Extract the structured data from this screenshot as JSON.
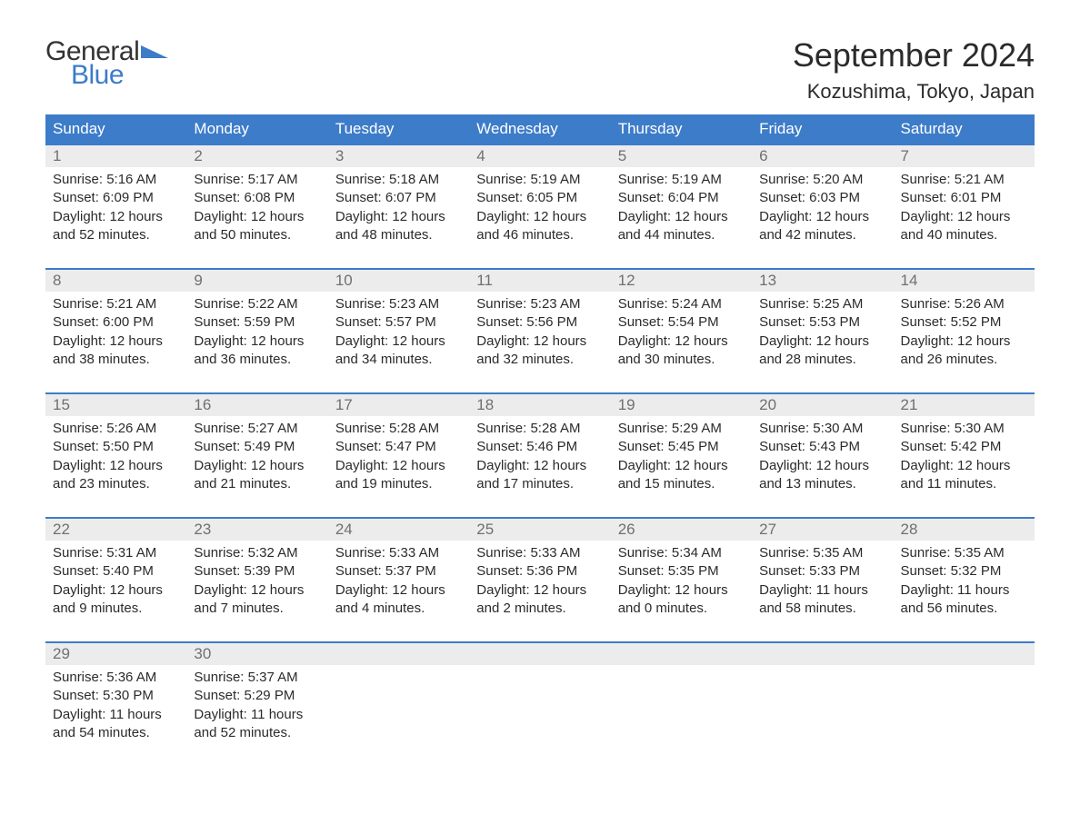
{
  "logo": {
    "general": "General",
    "blue": "Blue",
    "general_color": "#333333",
    "blue_color": "#3d7cc9",
    "shape_color": "#3d7cc9"
  },
  "header": {
    "month_title": "September 2024",
    "location": "Kozushima, Tokyo, Japan",
    "title_color": "#2b2b2b",
    "title_fontsize": 36,
    "location_fontsize": 22
  },
  "calendar": {
    "header_bg": "#3d7cc9",
    "header_text_color": "#ffffff",
    "daynum_bg": "#ececec",
    "daynum_color": "#707070",
    "daynum_border_top": "#3d7cc9",
    "body_bg": "#ffffff",
    "text_color": "#2b2b2b",
    "daynames": [
      "Sunday",
      "Monday",
      "Tuesday",
      "Wednesday",
      "Thursday",
      "Friday",
      "Saturday"
    ],
    "weeks": [
      {
        "nums": [
          "1",
          "2",
          "3",
          "4",
          "5",
          "6",
          "7"
        ],
        "cells": [
          {
            "sunrise": "Sunrise: 5:16 AM",
            "sunset": "Sunset: 6:09 PM",
            "dl1": "Daylight: 12 hours",
            "dl2": "and 52 minutes."
          },
          {
            "sunrise": "Sunrise: 5:17 AM",
            "sunset": "Sunset: 6:08 PM",
            "dl1": "Daylight: 12 hours",
            "dl2": "and 50 minutes."
          },
          {
            "sunrise": "Sunrise: 5:18 AM",
            "sunset": "Sunset: 6:07 PM",
            "dl1": "Daylight: 12 hours",
            "dl2": "and 48 minutes."
          },
          {
            "sunrise": "Sunrise: 5:19 AM",
            "sunset": "Sunset: 6:05 PM",
            "dl1": "Daylight: 12 hours",
            "dl2": "and 46 minutes."
          },
          {
            "sunrise": "Sunrise: 5:19 AM",
            "sunset": "Sunset: 6:04 PM",
            "dl1": "Daylight: 12 hours",
            "dl2": "and 44 minutes."
          },
          {
            "sunrise": "Sunrise: 5:20 AM",
            "sunset": "Sunset: 6:03 PM",
            "dl1": "Daylight: 12 hours",
            "dl2": "and 42 minutes."
          },
          {
            "sunrise": "Sunrise: 5:21 AM",
            "sunset": "Sunset: 6:01 PM",
            "dl1": "Daylight: 12 hours",
            "dl2": "and 40 minutes."
          }
        ]
      },
      {
        "nums": [
          "8",
          "9",
          "10",
          "11",
          "12",
          "13",
          "14"
        ],
        "cells": [
          {
            "sunrise": "Sunrise: 5:21 AM",
            "sunset": "Sunset: 6:00 PM",
            "dl1": "Daylight: 12 hours",
            "dl2": "and 38 minutes."
          },
          {
            "sunrise": "Sunrise: 5:22 AM",
            "sunset": "Sunset: 5:59 PM",
            "dl1": "Daylight: 12 hours",
            "dl2": "and 36 minutes."
          },
          {
            "sunrise": "Sunrise: 5:23 AM",
            "sunset": "Sunset: 5:57 PM",
            "dl1": "Daylight: 12 hours",
            "dl2": "and 34 minutes."
          },
          {
            "sunrise": "Sunrise: 5:23 AM",
            "sunset": "Sunset: 5:56 PM",
            "dl1": "Daylight: 12 hours",
            "dl2": "and 32 minutes."
          },
          {
            "sunrise": "Sunrise: 5:24 AM",
            "sunset": "Sunset: 5:54 PM",
            "dl1": "Daylight: 12 hours",
            "dl2": "and 30 minutes."
          },
          {
            "sunrise": "Sunrise: 5:25 AM",
            "sunset": "Sunset: 5:53 PM",
            "dl1": "Daylight: 12 hours",
            "dl2": "and 28 minutes."
          },
          {
            "sunrise": "Sunrise: 5:26 AM",
            "sunset": "Sunset: 5:52 PM",
            "dl1": "Daylight: 12 hours",
            "dl2": "and 26 minutes."
          }
        ]
      },
      {
        "nums": [
          "15",
          "16",
          "17",
          "18",
          "19",
          "20",
          "21"
        ],
        "cells": [
          {
            "sunrise": "Sunrise: 5:26 AM",
            "sunset": "Sunset: 5:50 PM",
            "dl1": "Daylight: 12 hours",
            "dl2": "and 23 minutes."
          },
          {
            "sunrise": "Sunrise: 5:27 AM",
            "sunset": "Sunset: 5:49 PM",
            "dl1": "Daylight: 12 hours",
            "dl2": "and 21 minutes."
          },
          {
            "sunrise": "Sunrise: 5:28 AM",
            "sunset": "Sunset: 5:47 PM",
            "dl1": "Daylight: 12 hours",
            "dl2": "and 19 minutes."
          },
          {
            "sunrise": "Sunrise: 5:28 AM",
            "sunset": "Sunset: 5:46 PM",
            "dl1": "Daylight: 12 hours",
            "dl2": "and 17 minutes."
          },
          {
            "sunrise": "Sunrise: 5:29 AM",
            "sunset": "Sunset: 5:45 PM",
            "dl1": "Daylight: 12 hours",
            "dl2": "and 15 minutes."
          },
          {
            "sunrise": "Sunrise: 5:30 AM",
            "sunset": "Sunset: 5:43 PM",
            "dl1": "Daylight: 12 hours",
            "dl2": "and 13 minutes."
          },
          {
            "sunrise": "Sunrise: 5:30 AM",
            "sunset": "Sunset: 5:42 PM",
            "dl1": "Daylight: 12 hours",
            "dl2": "and 11 minutes."
          }
        ]
      },
      {
        "nums": [
          "22",
          "23",
          "24",
          "25",
          "26",
          "27",
          "28"
        ],
        "cells": [
          {
            "sunrise": "Sunrise: 5:31 AM",
            "sunset": "Sunset: 5:40 PM",
            "dl1": "Daylight: 12 hours",
            "dl2": "and 9 minutes."
          },
          {
            "sunrise": "Sunrise: 5:32 AM",
            "sunset": "Sunset: 5:39 PM",
            "dl1": "Daylight: 12 hours",
            "dl2": "and 7 minutes."
          },
          {
            "sunrise": "Sunrise: 5:33 AM",
            "sunset": "Sunset: 5:37 PM",
            "dl1": "Daylight: 12 hours",
            "dl2": "and 4 minutes."
          },
          {
            "sunrise": "Sunrise: 5:33 AM",
            "sunset": "Sunset: 5:36 PM",
            "dl1": "Daylight: 12 hours",
            "dl2": "and 2 minutes."
          },
          {
            "sunrise": "Sunrise: 5:34 AM",
            "sunset": "Sunset: 5:35 PM",
            "dl1": "Daylight: 12 hours",
            "dl2": "and 0 minutes."
          },
          {
            "sunrise": "Sunrise: 5:35 AM",
            "sunset": "Sunset: 5:33 PM",
            "dl1": "Daylight: 11 hours",
            "dl2": "and 58 minutes."
          },
          {
            "sunrise": "Sunrise: 5:35 AM",
            "sunset": "Sunset: 5:32 PM",
            "dl1": "Daylight: 11 hours",
            "dl2": "and 56 minutes."
          }
        ]
      },
      {
        "nums": [
          "29",
          "30",
          "",
          "",
          "",
          "",
          ""
        ],
        "cells": [
          {
            "sunrise": "Sunrise: 5:36 AM",
            "sunset": "Sunset: 5:30 PM",
            "dl1": "Daylight: 11 hours",
            "dl2": "and 54 minutes."
          },
          {
            "sunrise": "Sunrise: 5:37 AM",
            "sunset": "Sunset: 5:29 PM",
            "dl1": "Daylight: 11 hours",
            "dl2": "and 52 minutes."
          },
          {
            "sunrise": "",
            "sunset": "",
            "dl1": "",
            "dl2": ""
          },
          {
            "sunrise": "",
            "sunset": "",
            "dl1": "",
            "dl2": ""
          },
          {
            "sunrise": "",
            "sunset": "",
            "dl1": "",
            "dl2": ""
          },
          {
            "sunrise": "",
            "sunset": "",
            "dl1": "",
            "dl2": ""
          },
          {
            "sunrise": "",
            "sunset": "",
            "dl1": "",
            "dl2": ""
          }
        ]
      }
    ]
  }
}
